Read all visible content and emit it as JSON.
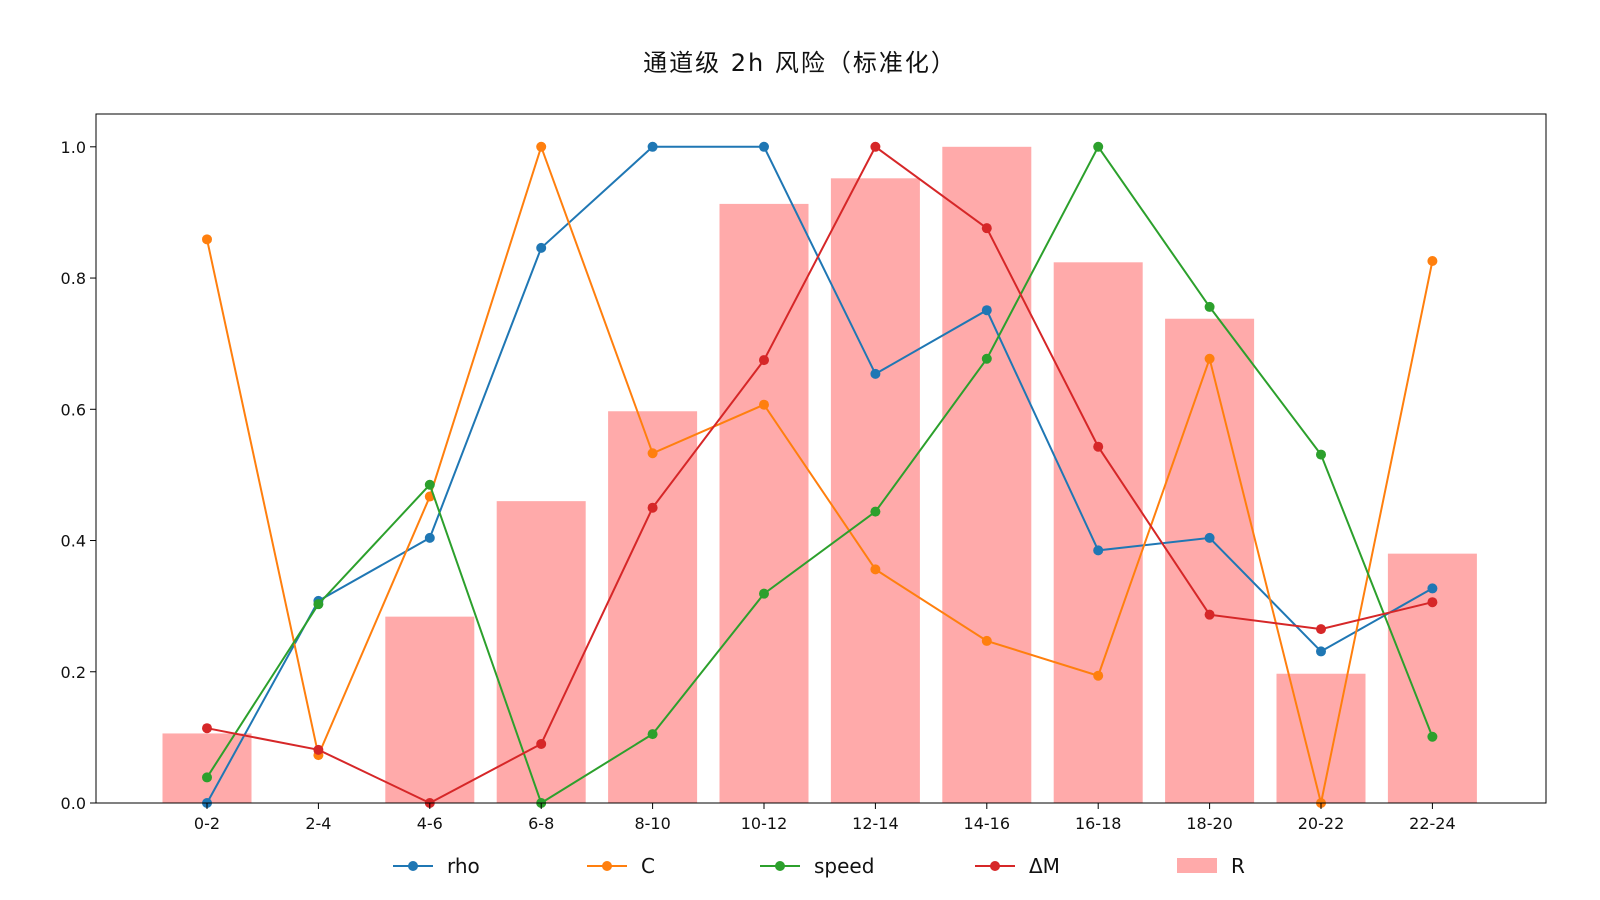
{
  "chart_data": {
    "type": "bar",
    "title": "通道级 2h 风险（标准化）",
    "xlabel": "",
    "ylabel": "",
    "categories": [
      "0-2",
      "2-4",
      "4-6",
      "6-8",
      "8-10",
      "10-12",
      "12-14",
      "14-16",
      "16-18",
      "18-20",
      "20-22",
      "22-24"
    ],
    "ylim": [
      0.0,
      1.05
    ],
    "yticks": [
      "0.0",
      "0.2",
      "0.4",
      "0.6",
      "0.8",
      "1.0"
    ],
    "grid": false,
    "legend_position": "bottom",
    "bar_series": {
      "name": "R",
      "color": "#ffaaaa",
      "values": [
        0.106,
        0.0,
        0.284,
        0.46,
        0.597,
        0.913,
        0.952,
        1.0,
        0.824,
        0.738,
        0.197,
        0.38
      ]
    },
    "series": [
      {
        "name": "rho",
        "type": "line",
        "color": "#1f77b4",
        "values": [
          0.0,
          0.308,
          0.404,
          0.846,
          1.0,
          1.0,
          0.654,
          0.751,
          0.385,
          0.404,
          0.231,
          0.327
        ]
      },
      {
        "name": "C",
        "type": "line",
        "color": "#ff7f0e",
        "values": [
          0.859,
          0.073,
          0.467,
          1.0,
          0.533,
          0.607,
          0.356,
          0.247,
          0.194,
          0.677,
          0.0,
          0.826
        ]
      },
      {
        "name": "speed",
        "type": "line",
        "color": "#2ca02c",
        "values": [
          0.039,
          0.303,
          0.485,
          0.0,
          0.105,
          0.319,
          0.444,
          0.677,
          1.0,
          0.756,
          0.531,
          0.101
        ]
      },
      {
        "name": "ΔM",
        "type": "line",
        "color": "#d62728",
        "values": [
          0.114,
          0.081,
          0.0,
          0.09,
          0.45,
          0.675,
          1.0,
          0.876,
          0.543,
          0.287,
          0.265,
          0.306
        ]
      }
    ],
    "legend_order": [
      "rho",
      "C",
      "speed",
      "ΔM",
      "R"
    ]
  }
}
